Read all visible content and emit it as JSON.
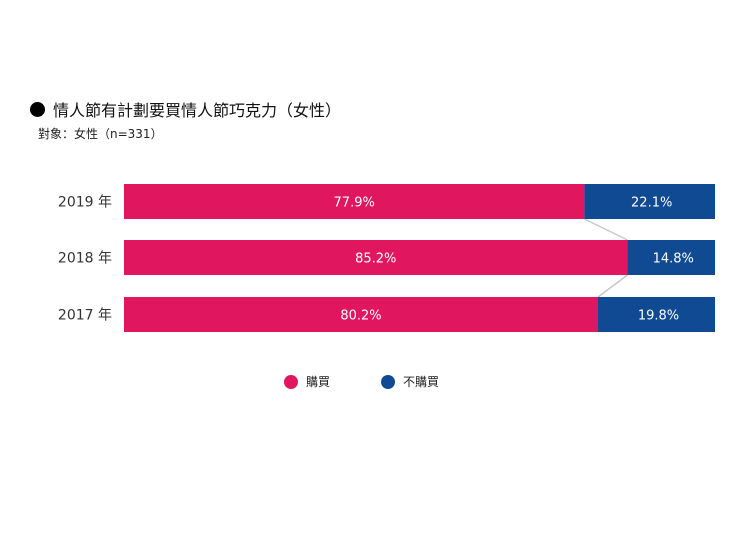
{
  "title": "情人節有計劃要買情人節巧克力（女性）",
  "subtitle": "對象：女性（n=331）",
  "colors": {
    "buy": "#e0175f",
    "not_buy": "#0f4a92",
    "connector": "#c8c8c8"
  },
  "chart_data": {
    "type": "bar",
    "orientation": "horizontal",
    "stacked": true,
    "percent_stacked": true,
    "categories": [
      "2019 年",
      "2018 年",
      "2017 年"
    ],
    "series": [
      {
        "name": "購買",
        "values": [
          77.9,
          85.2,
          80.2
        ],
        "labels": [
          "77.9%",
          "85.2%",
          "80.2%"
        ]
      },
      {
        "name": "不購買",
        "values": [
          22.1,
          14.8,
          19.8
        ],
        "labels": [
          "22.1%",
          "14.8%",
          "19.8%"
        ]
      }
    ],
    "xlim": [
      0,
      100
    ],
    "legend": "bottom",
    "grid": false
  }
}
